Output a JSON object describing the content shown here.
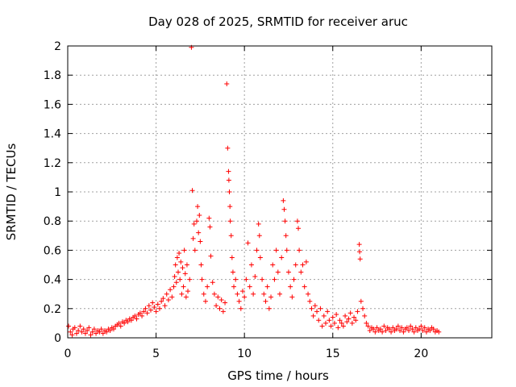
{
  "chart_data": {
    "type": "scatter",
    "title": "Day 028 of 2025, SRMTID for receiver aruc",
    "xlabel": "GPS time / hours",
    "ylabel": "SRMTID / TECUs",
    "xlim": [
      0,
      24
    ],
    "ylim": [
      0,
      2
    ],
    "x_ticks": [
      "0",
      "5",
      "10",
      "15",
      "20"
    ],
    "x_tick_values": [
      0,
      5,
      10,
      15,
      20
    ],
    "y_ticks": [
      "0",
      "0.2",
      "0.4",
      "0.6",
      "0.8",
      "1",
      "1.2",
      "1.4",
      "1.6",
      "1.8",
      "2"
    ],
    "y_tick_values": [
      0,
      0.2,
      0.4,
      0.6,
      0.8,
      1,
      1.2,
      1.4,
      1.6,
      1.8,
      2
    ],
    "grid": true,
    "marker": "+",
    "series": [
      {
        "color": "#ff0000",
        "points": [
          [
            0.05,
            0.08
          ],
          [
            0.15,
            0.04
          ],
          [
            0.25,
            0.02
          ],
          [
            0.3,
            0.06
          ],
          [
            0.4,
            0.07
          ],
          [
            0.5,
            0.03
          ],
          [
            0.6,
            0.05
          ],
          [
            0.7,
            0.08
          ],
          [
            0.8,
            0.04
          ],
          [
            0.9,
            0.06
          ],
          [
            1.0,
            0.03
          ],
          [
            1.1,
            0.05
          ],
          [
            1.2,
            0.07
          ],
          [
            1.3,
            0.02
          ],
          [
            1.4,
            0.04
          ],
          [
            1.5,
            0.06
          ],
          [
            1.6,
            0.03
          ],
          [
            1.7,
            0.05
          ],
          [
            1.8,
            0.04
          ],
          [
            1.9,
            0.06
          ],
          [
            2.0,
            0.03
          ],
          [
            2.1,
            0.05
          ],
          [
            2.2,
            0.04
          ],
          [
            2.3,
            0.06
          ],
          [
            2.4,
            0.05
          ],
          [
            2.5,
            0.07
          ],
          [
            2.6,
            0.06
          ],
          [
            2.7,
            0.08
          ],
          [
            2.8,
            0.09
          ],
          [
            2.9,
            0.1
          ],
          [
            3.0,
            0.08
          ],
          [
            3.1,
            0.11
          ],
          [
            3.2,
            0.1
          ],
          [
            3.3,
            0.12
          ],
          [
            3.4,
            0.11
          ],
          [
            3.5,
            0.13
          ],
          [
            3.6,
            0.12
          ],
          [
            3.7,
            0.14
          ],
          [
            3.8,
            0.15
          ],
          [
            3.9,
            0.13
          ],
          [
            4.0,
            0.16
          ],
          [
            4.1,
            0.17
          ],
          [
            4.2,
            0.15
          ],
          [
            4.3,
            0.18
          ],
          [
            4.4,
            0.2
          ],
          [
            4.5,
            0.17
          ],
          [
            4.6,
            0.22
          ],
          [
            4.7,
            0.19
          ],
          [
            4.8,
            0.24
          ],
          [
            4.9,
            0.21
          ],
          [
            5.0,
            0.18
          ],
          [
            5.1,
            0.23
          ],
          [
            5.2,
            0.2
          ],
          [
            5.3,
            0.25
          ],
          [
            5.4,
            0.27
          ],
          [
            5.5,
            0.22
          ],
          [
            5.6,
            0.3
          ],
          [
            5.7,
            0.26
          ],
          [
            5.8,
            0.33
          ],
          [
            5.9,
            0.28
          ],
          [
            6.0,
            0.35
          ],
          [
            6.05,
            0.42
          ],
          [
            6.1,
            0.5
          ],
          [
            6.15,
            0.38
          ],
          [
            6.2,
            0.55
          ],
          [
            6.25,
            0.45
          ],
          [
            6.3,
            0.58
          ],
          [
            6.35,
            0.4
          ],
          [
            6.4,
            0.52
          ],
          [
            6.45,
            0.3
          ],
          [
            6.5,
            0.48
          ],
          [
            6.55,
            0.35
          ],
          [
            6.6,
            0.6
          ],
          [
            6.65,
            0.44
          ],
          [
            6.7,
            0.28
          ],
          [
            6.75,
            0.5
          ],
          [
            6.8,
            0.32
          ],
          [
            6.9,
            0.4
          ],
          [
            7.0,
            1.99
          ],
          [
            7.05,
            1.01
          ],
          [
            7.1,
            0.68
          ],
          [
            7.15,
            0.78
          ],
          [
            7.2,
            0.6
          ],
          [
            7.3,
            0.8
          ],
          [
            7.35,
            0.9
          ],
          [
            7.4,
            0.72
          ],
          [
            7.45,
            0.84
          ],
          [
            7.5,
            0.66
          ],
          [
            7.55,
            0.5
          ],
          [
            7.6,
            0.4
          ],
          [
            7.7,
            0.3
          ],
          [
            7.8,
            0.25
          ],
          [
            7.9,
            0.35
          ],
          [
            8.0,
            0.82
          ],
          [
            8.05,
            0.76
          ],
          [
            8.1,
            0.56
          ],
          [
            8.2,
            0.38
          ],
          [
            8.3,
            0.3
          ],
          [
            8.4,
            0.22
          ],
          [
            8.5,
            0.28
          ],
          [
            8.6,
            0.2
          ],
          [
            8.7,
            0.26
          ],
          [
            8.8,
            0.18
          ],
          [
            8.9,
            0.24
          ],
          [
            9.0,
            1.74
          ],
          [
            9.05,
            1.3
          ],
          [
            9.1,
            1.14
          ],
          [
            9.12,
            1.08
          ],
          [
            9.15,
            1.0
          ],
          [
            9.18,
            0.9
          ],
          [
            9.2,
            0.8
          ],
          [
            9.25,
            0.7
          ],
          [
            9.3,
            0.55
          ],
          [
            9.35,
            0.45
          ],
          [
            9.4,
            0.35
          ],
          [
            9.5,
            0.4
          ],
          [
            9.6,
            0.3
          ],
          [
            9.7,
            0.25
          ],
          [
            9.8,
            0.2
          ],
          [
            9.9,
            0.32
          ],
          [
            10.0,
            0.28
          ],
          [
            10.1,
            0.4
          ],
          [
            10.2,
            0.65
          ],
          [
            10.3,
            0.35
          ],
          [
            10.4,
            0.5
          ],
          [
            10.5,
            0.3
          ],
          [
            10.6,
            0.42
          ],
          [
            10.7,
            0.6
          ],
          [
            10.8,
            0.78
          ],
          [
            10.85,
            0.7
          ],
          [
            10.9,
            0.55
          ],
          [
            11.0,
            0.4
          ],
          [
            11.1,
            0.3
          ],
          [
            11.2,
            0.25
          ],
          [
            11.3,
            0.35
          ],
          [
            11.4,
            0.2
          ],
          [
            11.5,
            0.28
          ],
          [
            11.6,
            0.5
          ],
          [
            11.7,
            0.4
          ],
          [
            11.8,
            0.6
          ],
          [
            11.9,
            0.45
          ],
          [
            12.0,
            0.3
          ],
          [
            12.1,
            0.55
          ],
          [
            12.2,
            0.94
          ],
          [
            12.25,
            0.88
          ],
          [
            12.3,
            0.8
          ],
          [
            12.35,
            0.7
          ],
          [
            12.4,
            0.6
          ],
          [
            12.5,
            0.45
          ],
          [
            12.6,
            0.35
          ],
          [
            12.7,
            0.28
          ],
          [
            12.8,
            0.4
          ],
          [
            12.9,
            0.5
          ],
          [
            13.0,
            0.8
          ],
          [
            13.05,
            0.75
          ],
          [
            13.1,
            0.6
          ],
          [
            13.2,
            0.45
          ],
          [
            13.3,
            0.5
          ],
          [
            13.4,
            0.35
          ],
          [
            13.5,
            0.52
          ],
          [
            13.6,
            0.3
          ],
          [
            13.7,
            0.25
          ],
          [
            13.8,
            0.2
          ],
          [
            13.9,
            0.15
          ],
          [
            14.0,
            0.22
          ],
          [
            14.1,
            0.18
          ],
          [
            14.2,
            0.12
          ],
          [
            14.3,
            0.2
          ],
          [
            14.4,
            0.08
          ],
          [
            14.5,
            0.15
          ],
          [
            14.6,
            0.1
          ],
          [
            14.7,
            0.18
          ],
          [
            14.8,
            0.12
          ],
          [
            14.9,
            0.08
          ],
          [
            15.0,
            0.14
          ],
          [
            15.1,
            0.1
          ],
          [
            15.2,
            0.16
          ],
          [
            15.3,
            0.07
          ],
          [
            15.4,
            0.12
          ],
          [
            15.5,
            0.1
          ],
          [
            15.6,
            0.08
          ],
          [
            15.7,
            0.15
          ],
          [
            15.8,
            0.11
          ],
          [
            15.9,
            0.13
          ],
          [
            16.0,
            0.17
          ],
          [
            16.1,
            0.1
          ],
          [
            16.2,
            0.14
          ],
          [
            16.3,
            0.12
          ],
          [
            16.4,
            0.18
          ],
          [
            16.5,
            0.64
          ],
          [
            16.52,
            0.59
          ],
          [
            16.55,
            0.54
          ],
          [
            16.6,
            0.25
          ],
          [
            16.7,
            0.2
          ],
          [
            16.8,
            0.15
          ],
          [
            16.9,
            0.1
          ],
          [
            17.0,
            0.08
          ],
          [
            17.1,
            0.05
          ],
          [
            17.2,
            0.07
          ],
          [
            17.3,
            0.06
          ],
          [
            17.4,
            0.04
          ],
          [
            17.5,
            0.07
          ],
          [
            17.6,
            0.05
          ],
          [
            17.7,
            0.06
          ],
          [
            17.8,
            0.04
          ],
          [
            17.9,
            0.08
          ],
          [
            18.0,
            0.05
          ],
          [
            18.1,
            0.07
          ],
          [
            18.2,
            0.06
          ],
          [
            18.3,
            0.04
          ],
          [
            18.4,
            0.07
          ],
          [
            18.5,
            0.05
          ],
          [
            18.6,
            0.06
          ],
          [
            18.7,
            0.08
          ],
          [
            18.8,
            0.05
          ],
          [
            18.9,
            0.07
          ],
          [
            19.0,
            0.04
          ],
          [
            19.1,
            0.06
          ],
          [
            19.2,
            0.07
          ],
          [
            19.3,
            0.05
          ],
          [
            19.4,
            0.08
          ],
          [
            19.5,
            0.06
          ],
          [
            19.6,
            0.04
          ],
          [
            19.7,
            0.07
          ],
          [
            19.8,
            0.05
          ],
          [
            19.9,
            0.06
          ],
          [
            20.0,
            0.08
          ],
          [
            20.1,
            0.05
          ],
          [
            20.2,
            0.07
          ],
          [
            20.3,
            0.04
          ],
          [
            20.4,
            0.06
          ],
          [
            20.5,
            0.05
          ],
          [
            20.6,
            0.07
          ],
          [
            20.7,
            0.06
          ],
          [
            20.8,
            0.04
          ],
          [
            20.9,
            0.05
          ],
          [
            21.0,
            0.04
          ]
        ]
      }
    ]
  }
}
